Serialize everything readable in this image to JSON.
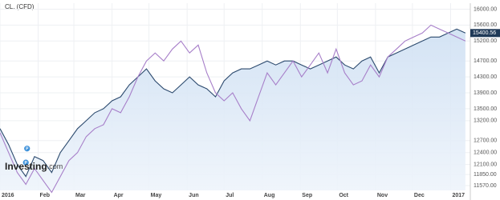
{
  "chart_data": {
    "type": "line",
    "title": "CL, (CFD)",
    "logo": "Investing",
    "logo_suffix": ".com",
    "x": [
      0,
      7,
      14,
      21,
      28,
      35,
      42,
      49,
      56,
      63,
      70,
      77,
      84,
      91,
      98,
      105,
      112,
      119,
      126,
      133,
      140,
      147,
      154,
      161,
      168,
      175,
      182,
      189,
      196,
      203,
      210,
      217,
      224,
      231,
      238,
      245,
      252,
      259,
      266,
      273,
      280,
      287,
      294,
      301,
      308,
      315,
      322,
      329,
      336,
      343,
      350,
      357,
      364,
      371,
      378
    ],
    "series": [
      {
        "color": "#2c4a6e",
        "area": true,
        "values": [
          13000,
          12600,
          12100,
          11800,
          12300,
          12200,
          11900,
          12400,
          12700,
          13000,
          13200,
          13400,
          13500,
          13700,
          13800,
          14100,
          14300,
          14500,
          14200,
          14000,
          13900,
          14100,
          14300,
          14100,
          14000,
          13800,
          14200,
          14400,
          14500,
          14500,
          14600,
          14700,
          14600,
          14700,
          14700,
          14600,
          14500,
          14600,
          14700,
          14800,
          14600,
          14500,
          14700,
          14800,
          14400,
          14800,
          14900,
          15000,
          15100,
          15200,
          15300,
          15300,
          15400,
          15500,
          15400
        ]
      },
      {
        "color": "#a77fc9",
        "area": false,
        "values": [
          12900,
          12400,
          11900,
          11600,
          12000,
          11700,
          11400,
          11800,
          12200,
          12400,
          12800,
          13000,
          13100,
          13500,
          13400,
          13800,
          14300,
          14700,
          14900,
          14700,
          15000,
          15200,
          14900,
          15100,
          14400,
          13900,
          13700,
          13900,
          13500,
          13200,
          13800,
          14400,
          14100,
          14400,
          14700,
          14300,
          14600,
          14900,
          14400,
          15000,
          14400,
          14100,
          14200,
          14600,
          14300,
          14800,
          15000,
          15200,
          15300,
          15400,
          15600,
          15500,
          15400,
          15300,
          15200
        ]
      }
    ],
    "xlim": [
      0,
      382
    ],
    "xticks": [
      {
        "value": 0,
        "label": "2016"
      },
      {
        "value": 31,
        "label": "Feb"
      },
      {
        "value": 60,
        "label": "Mar"
      },
      {
        "value": 91,
        "label": "Apr"
      },
      {
        "value": 121,
        "label": "May"
      },
      {
        "value": 152,
        "label": "Jun"
      },
      {
        "value": 182,
        "label": "Jul"
      },
      {
        "value": 213,
        "label": "Aug"
      },
      {
        "value": 244,
        "label": "Sep"
      },
      {
        "value": 274,
        "label": "Oct"
      },
      {
        "value": 305,
        "label": "Nov"
      },
      {
        "value": 335,
        "label": "Dec"
      },
      {
        "value": 366,
        "label": "2017"
      }
    ],
    "ylim": [
      11450,
      16150
    ],
    "yticks": [
      {
        "value": 11570,
        "label": "11570.00"
      },
      {
        "value": 11850,
        "label": "11850.00"
      },
      {
        "value": 12100,
        "label": "12100.00"
      },
      {
        "value": 12400,
        "label": "12400.00"
      },
      {
        "value": 12700,
        "label": "12700.00"
      },
      {
        "value": 13200,
        "label": "13200.00"
      },
      {
        "value": 13500,
        "label": "13500.00"
      },
      {
        "value": 13900,
        "label": "13900.00"
      },
      {
        "value": 14300,
        "label": "14300.00"
      },
      {
        "value": 14700,
        "label": "14700.00"
      },
      {
        "value": 15200,
        "label": "15200.00"
      },
      {
        "value": 15600,
        "label": "15600.00"
      },
      {
        "value": 16000,
        "label": "16000.00"
      }
    ],
    "last_price": 15400.56,
    "events": [
      {
        "x": 22,
        "y": 12500,
        "label": "P"
      },
      {
        "x": 21,
        "y": 12150,
        "label": "P"
      }
    ],
    "grid": true
  }
}
